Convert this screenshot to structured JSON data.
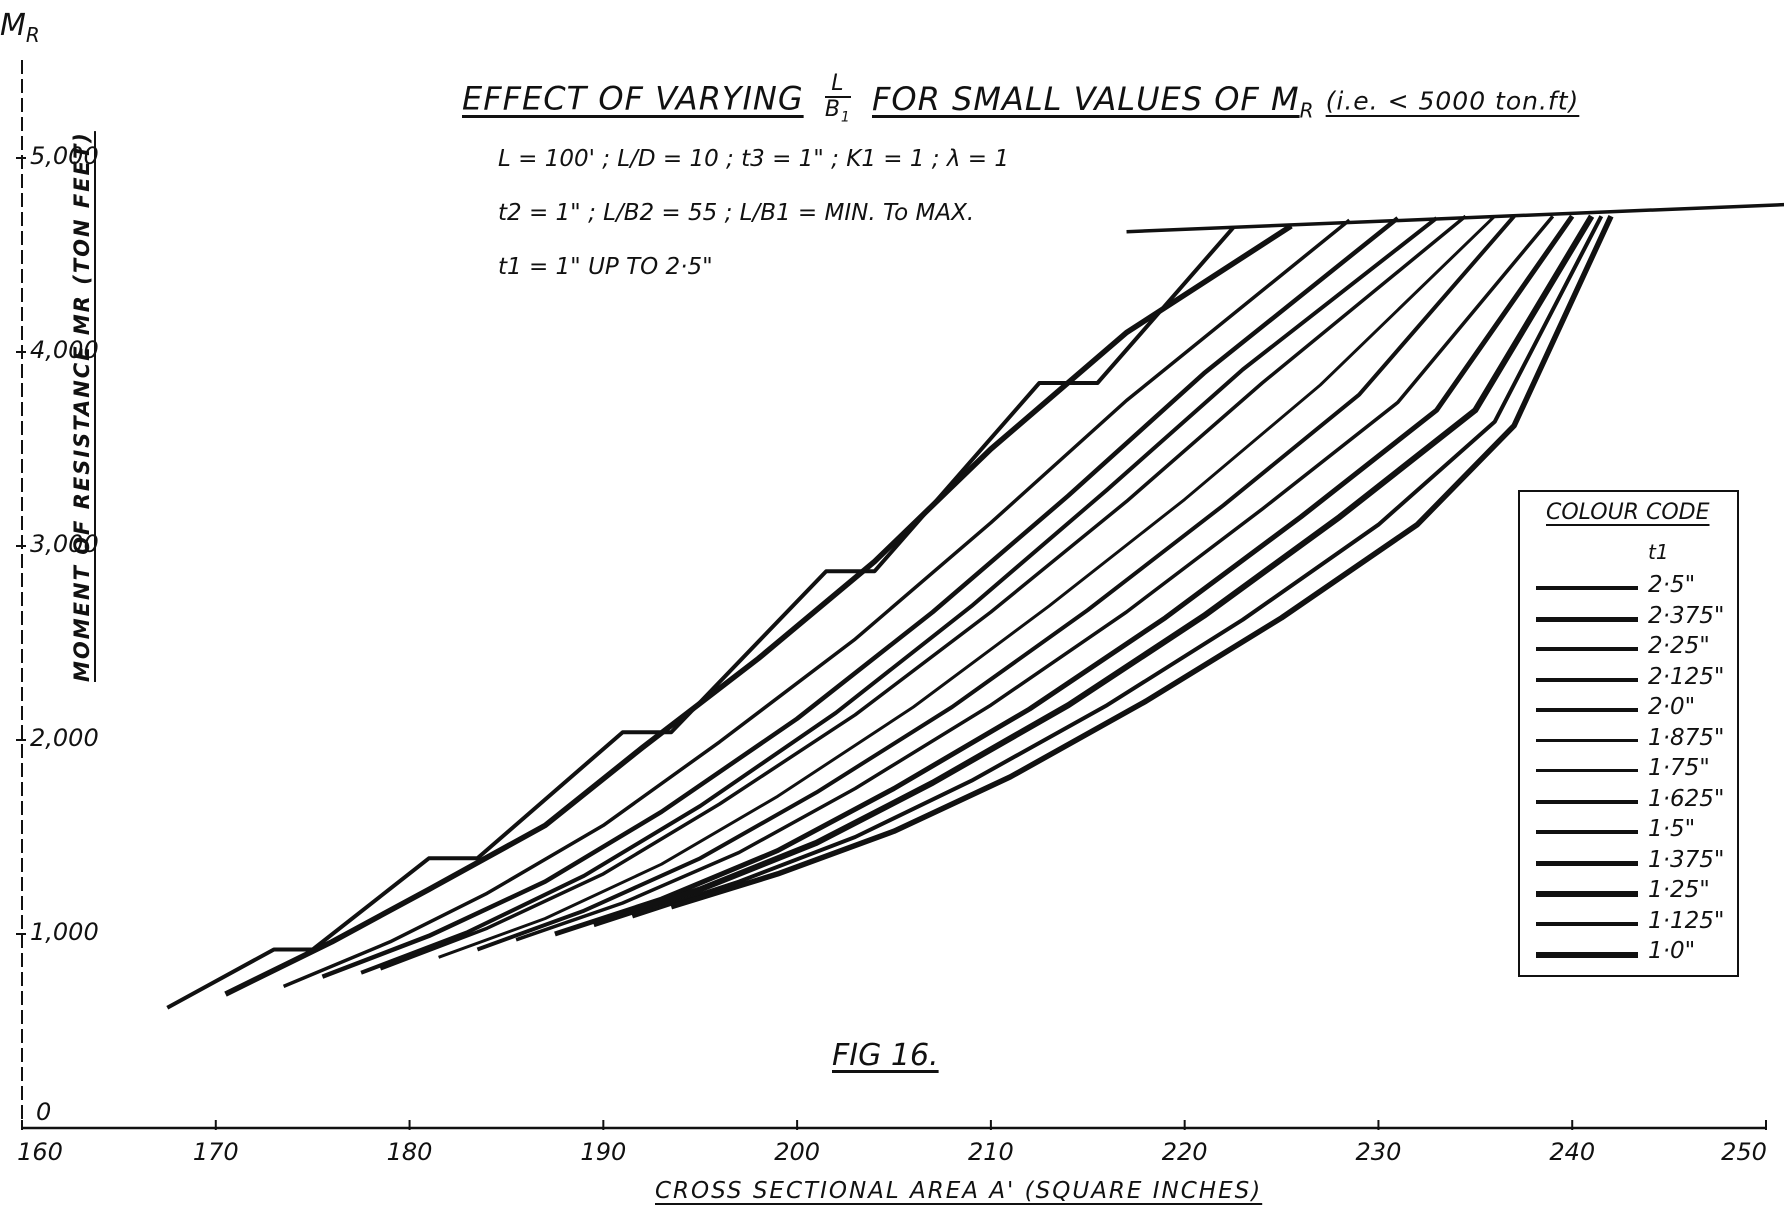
{
  "title": {
    "main": "EFFECT OF VARYING",
    "frac_num": "L",
    "frac_den": "B",
    "frac_den_sub": "1",
    "rest": "FOR SMALL VALUES OF M",
    "rest_sub": "R",
    "note": "(i.e. < 5000 ton.ft)"
  },
  "params": {
    "line1": "L = 100' ;  L/D = 10 ;  t3 = 1\" ;  K1 = 1 ;  λ = 1",
    "line2": "t2 = 1\" ;  L/B2 = 55 ;  L/B1 = MIN. To MAX.",
    "line3": "t1 = 1\"  UP TO 2·5\""
  },
  "y_symbol": "M",
  "y_symbol_sub": "R",
  "figure_label": "FIG 16.",
  "legend": {
    "title": "COLOUR CODE",
    "subtitle": "t1",
    "entries": [
      "2·5\"",
      "2·375\"",
      "2·25\"",
      "2·125\"",
      "2·0\"",
      "1·875\"",
      "1·75\"",
      "1·625\"",
      "1·5\"",
      "1·375\"",
      "1·25\"",
      "1·125\"",
      "1·0\""
    ]
  },
  "chart_data": {
    "type": "line",
    "title": "EFFECT OF VARYING L/B1 FOR SMALL VALUES OF MR (i.e. < 5000 ton.ft)",
    "xlabel": "CROSS SECTIONAL AREA A' (SQUARE INCHES)",
    "ylabel": "MOMENT OF RESISTANCE MR (TON FEET)",
    "xlim": [
      160,
      250
    ],
    "ylim": [
      0,
      5400
    ],
    "x_ticks": [
      160,
      170,
      180,
      190,
      200,
      210,
      220,
      230,
      240,
      250
    ],
    "x_tick_labels": [
      "160",
      "170",
      "180",
      "190",
      "200",
      "210",
      "220",
      "230",
      "240",
      "250"
    ],
    "y_ticks": [
      0,
      1000,
      2000,
      3000,
      4000,
      5000
    ],
    "y_tick_labels": [
      "0",
      "1,000",
      "2,000",
      "3,000",
      "4,000",
      "5,000"
    ],
    "grid": false,
    "legend_position": "right",
    "envelope": {
      "x": [
        217,
        251
      ],
      "y": [
        4620,
        4760
      ]
    },
    "series": [
      {
        "name": "2·5\"",
        "x": [
          167.5,
          173,
          175,
          181,
          183.5,
          191,
          193.5,
          201.5,
          204,
          212.5,
          215.5,
          222.5
        ],
        "y": [
          620,
          920,
          920,
          1390,
          1390,
          2040,
          2040,
          2870,
          2870,
          3840,
          3840,
          4640
        ]
      },
      {
        "name": "2·375\"",
        "x": [
          170.5,
          176,
          181,
          187,
          192,
          198,
          204,
          210,
          217,
          225.5
        ],
        "y": [
          690,
          960,
          1230,
          1560,
          1960,
          2420,
          2920,
          3500,
          4100,
          4650
        ]
      },
      {
        "name": "2·25\"",
        "x": [
          173.5,
          179,
          184,
          190,
          196,
          203,
          210,
          217,
          228.5
        ],
        "y": [
          730,
          960,
          1210,
          1560,
          1990,
          2520,
          3120,
          3750,
          4680
        ]
      },
      {
        "name": "2·125\"",
        "x": [
          175.5,
          181,
          187,
          193,
          200,
          207,
          214,
          221,
          231
        ],
        "y": [
          780,
          990,
          1270,
          1630,
          2110,
          2660,
          3260,
          3890,
          4690
        ]
      },
      {
        "name": "2·0\"",
        "x": [
          177.5,
          183,
          189,
          195,
          202,
          209,
          216,
          223,
          233
        ],
        "y": [
          800,
          1010,
          1300,
          1660,
          2140,
          2690,
          3290,
          3910,
          4690
        ]
      },
      {
        "name": "1·875\"",
        "x": [
          178.5,
          184,
          190,
          196,
          203,
          210,
          217,
          224,
          234.5
        ],
        "y": [
          820,
          1030,
          1310,
          1670,
          2130,
          2660,
          3230,
          3840,
          4700
        ]
      },
      {
        "name": "1·75\"",
        "x": [
          181.5,
          187,
          193,
          199,
          206,
          213,
          220,
          227,
          236
        ],
        "y": [
          880,
          1080,
          1360,
          1710,
          2170,
          2690,
          3240,
          3830,
          4700
        ]
      },
      {
        "name": "1·625\"",
        "x": [
          183.5,
          189,
          195,
          201,
          208,
          215,
          222,
          229,
          237
        ],
        "y": [
          920,
          1120,
          1390,
          1730,
          2170,
          2670,
          3210,
          3780,
          4700
        ]
      },
      {
        "name": "1·5\"",
        "x": [
          185.5,
          191,
          197,
          203,
          210,
          217,
          224,
          231,
          239
        ],
        "y": [
          970,
          1160,
          1420,
          1750,
          2180,
          2660,
          3190,
          3740,
          4700
        ]
      },
      {
        "name": "1·375\"",
        "x": [
          187.5,
          193,
          199,
          205,
          212,
          219,
          226,
          233,
          240
        ],
        "y": [
          1000,
          1180,
          1430,
          1750,
          2160,
          2630,
          3150,
          3700,
          4700
        ]
      },
      {
        "name": "1·25\"",
        "x": [
          189.5,
          195,
          201,
          207,
          214,
          221,
          228,
          235,
          241
        ],
        "y": [
          1050,
          1230,
          1470,
          1780,
          2180,
          2640,
          3150,
          3700,
          4700
        ]
      },
      {
        "name": "1·125\"",
        "x": [
          191.5,
          197,
          203,
          209,
          216,
          223,
          230,
          236,
          241.5
        ],
        "y": [
          1090,
          1270,
          1500,
          1790,
          2180,
          2620,
          3110,
          3640,
          4700
        ]
      },
      {
        "name": "1·0\"",
        "x": [
          193.5,
          199,
          205,
          211,
          218,
          225,
          232,
          237,
          242
        ],
        "y": [
          1140,
          1310,
          1530,
          1810,
          2200,
          2630,
          3110,
          3620,
          4700
        ]
      }
    ]
  }
}
